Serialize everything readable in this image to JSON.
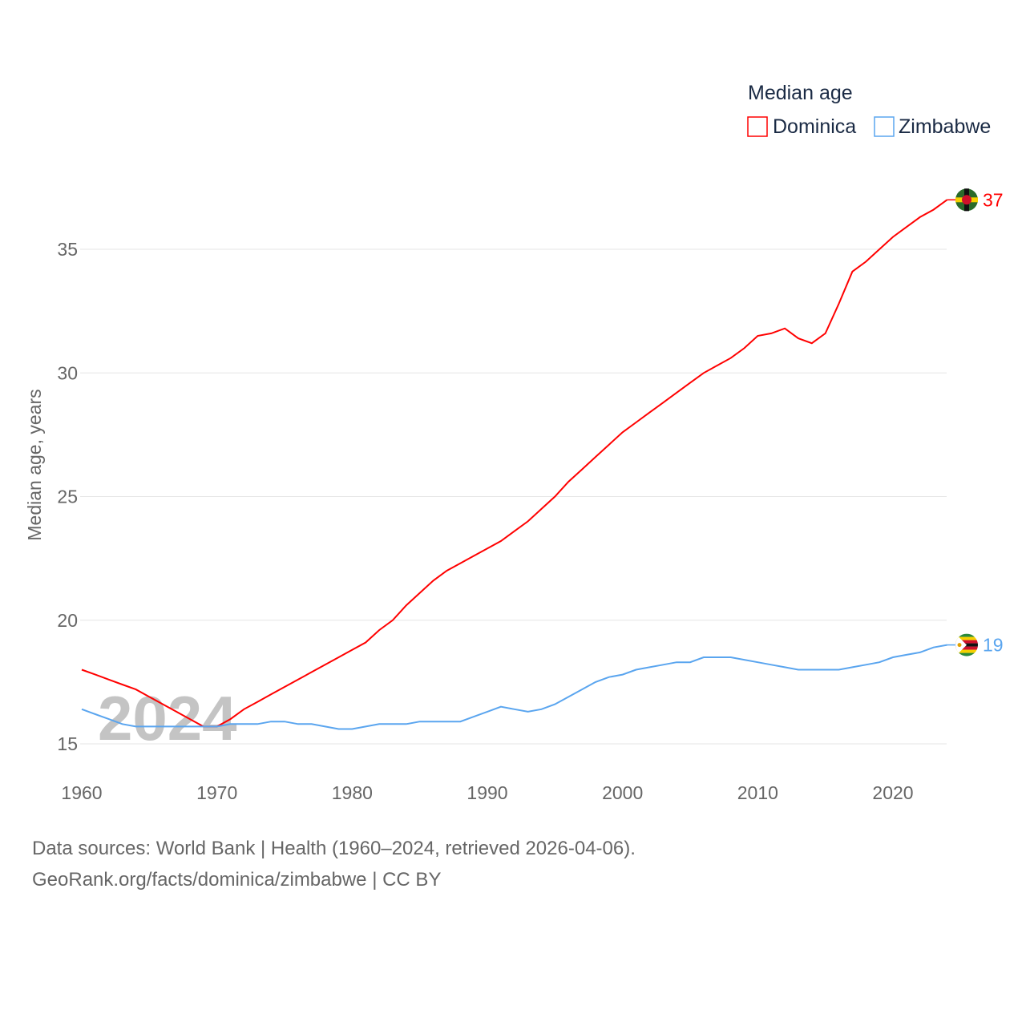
{
  "chart_data": {
    "type": "line",
    "legend_title": "Median age",
    "legend_position": "top-right",
    "ylabel": "Median age, years",
    "xlabel": "",
    "xlim": [
      1960,
      2024
    ],
    "ylim": [
      14,
      38
    ],
    "x_ticks": [
      "1960",
      "1970",
      "1980",
      "1990",
      "2000",
      "2010",
      "2020"
    ],
    "y_ticks": [
      "15",
      "20",
      "25",
      "30",
      "35"
    ],
    "watermark_year": "2024",
    "x": [
      1960,
      1961,
      1962,
      1963,
      1964,
      1965,
      1966,
      1967,
      1968,
      1969,
      1970,
      1971,
      1972,
      1973,
      1974,
      1975,
      1976,
      1977,
      1978,
      1979,
      1980,
      1981,
      1982,
      1983,
      1984,
      1985,
      1986,
      1987,
      1988,
      1989,
      1990,
      1991,
      1992,
      1993,
      1994,
      1995,
      1996,
      1997,
      1998,
      1999,
      2000,
      2001,
      2002,
      2003,
      2004,
      2005,
      2006,
      2007,
      2008,
      2009,
      2010,
      2011,
      2012,
      2013,
      2014,
      2015,
      2016,
      2017,
      2018,
      2019,
      2020,
      2021,
      2022,
      2023,
      2024
    ],
    "series": [
      {
        "name": "Dominica",
        "color": "#ff0000",
        "end_label": "37",
        "values": [
          18.0,
          17.8,
          17.6,
          17.4,
          17.2,
          16.9,
          16.6,
          16.3,
          16.0,
          15.7,
          15.7,
          16.0,
          16.4,
          16.7,
          17.0,
          17.3,
          17.6,
          17.9,
          18.2,
          18.5,
          18.8,
          19.1,
          19.6,
          20.0,
          20.6,
          21.1,
          21.6,
          22.0,
          22.3,
          22.6,
          22.9,
          23.2,
          23.6,
          24.0,
          24.5,
          25.0,
          25.6,
          26.1,
          26.6,
          27.1,
          27.6,
          28.0,
          28.4,
          28.8,
          29.2,
          29.6,
          30.0,
          30.3,
          30.6,
          31.0,
          31.5,
          31.6,
          31.8,
          31.4,
          31.2,
          31.6,
          32.8,
          34.1,
          34.5,
          35.0,
          35.5,
          35.9,
          36.3,
          36.6,
          37.0
        ]
      },
      {
        "name": "Zimbabwe",
        "color": "#5aa5ef",
        "end_label": "19",
        "values": [
          16.4,
          16.2,
          16.0,
          15.8,
          15.7,
          15.7,
          15.7,
          15.7,
          15.7,
          15.7,
          15.7,
          15.8,
          15.8,
          15.8,
          15.9,
          15.9,
          15.8,
          15.8,
          15.7,
          15.6,
          15.6,
          15.7,
          15.8,
          15.8,
          15.8,
          15.9,
          15.9,
          15.9,
          15.9,
          16.1,
          16.3,
          16.5,
          16.4,
          16.3,
          16.4,
          16.6,
          16.9,
          17.2,
          17.5,
          17.7,
          17.8,
          18.0,
          18.1,
          18.2,
          18.3,
          18.3,
          18.5,
          18.5,
          18.5,
          18.4,
          18.3,
          18.2,
          18.1,
          18.0,
          18.0,
          18.0,
          18.0,
          18.1,
          18.2,
          18.3,
          18.5,
          18.6,
          18.7,
          18.9,
          19.0
        ]
      }
    ]
  },
  "footer": {
    "sources": "Data sources: World Bank | Health (1960–2024, retrieved 2026-04-06).",
    "credit": "GeoRank.org/facts/dominica/zimbabwe | CC BY"
  }
}
